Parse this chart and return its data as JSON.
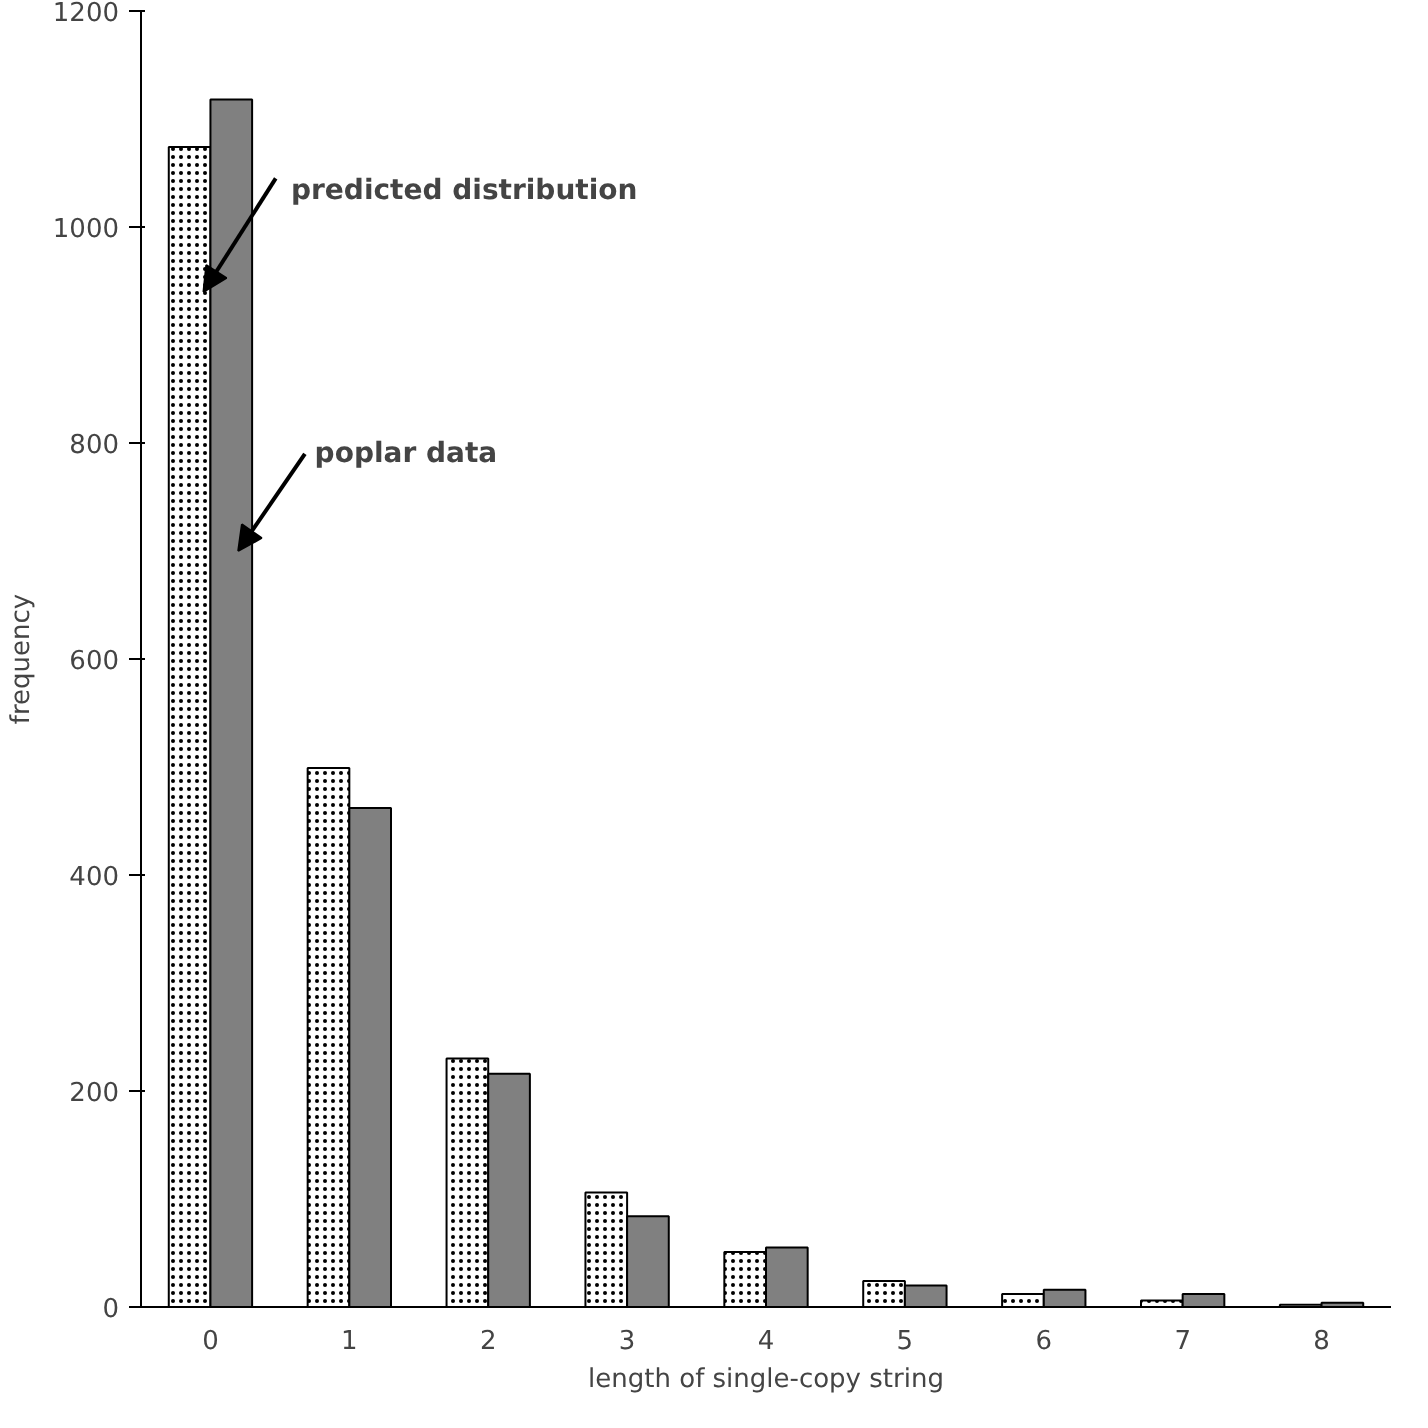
{
  "chart_data": {
    "type": "bar",
    "xlabel": "length of single-copy string",
    "ylabel": "frequency",
    "categories": [
      "0",
      "1",
      "2",
      "3",
      "4",
      "5",
      "6",
      "7",
      "8"
    ],
    "series": [
      {
        "name": "predicted distribution",
        "color": "#ffffff",
        "values": [
          1074,
          499,
          230,
          106,
          51,
          24,
          12,
          6,
          2
        ]
      },
      {
        "name": "poplar data",
        "color": "#808080",
        "values": [
          1118,
          462,
          216,
          84,
          55,
          20,
          16,
          12,
          4
        ]
      }
    ],
    "ylim": [
      0,
      1200
    ],
    "yticks": [
      0,
      200,
      400,
      600,
      800,
      1000,
      1200
    ],
    "grid": false
  }
}
